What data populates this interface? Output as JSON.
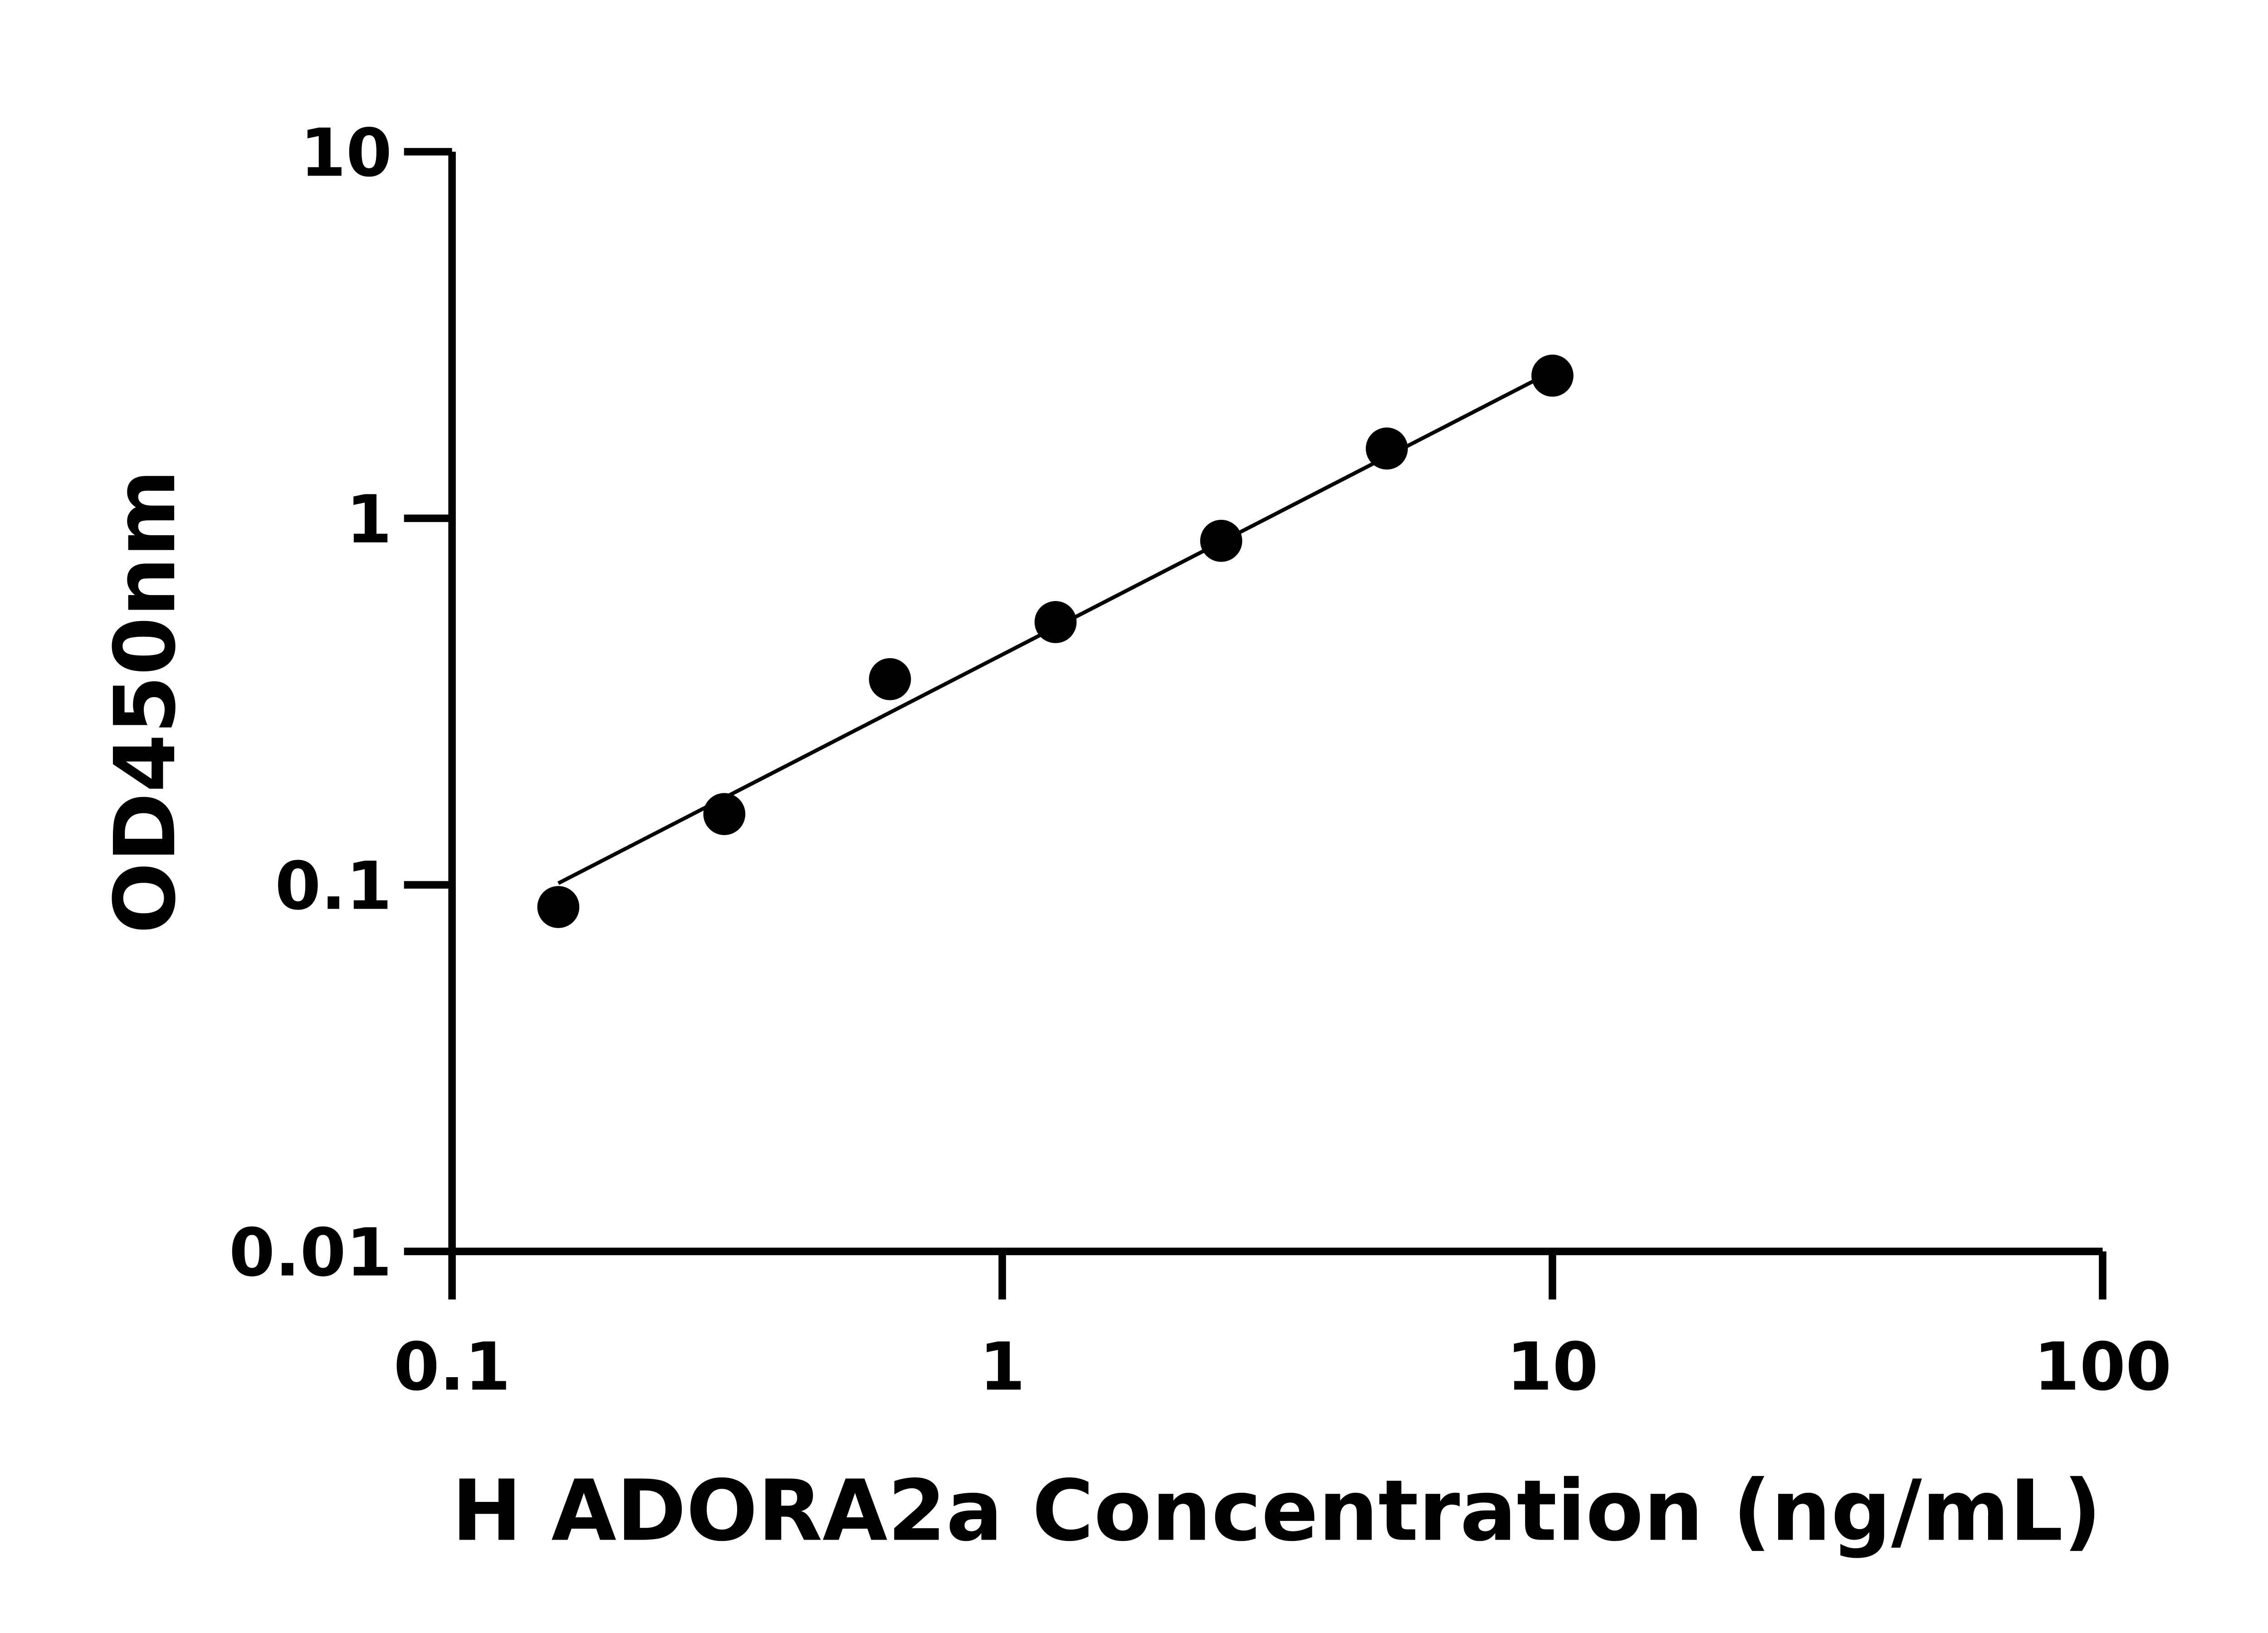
{
  "chart_data": {
    "type": "scatter",
    "title": "",
    "xlabel": "H ADORA2a Concentration (ng/mL)",
    "ylabel": "OD450nm",
    "x_scale": "log",
    "y_scale": "log",
    "xlim": [
      0.1,
      100
    ],
    "ylim": [
      0.01,
      10
    ],
    "x_ticks": [
      "0.1",
      "1",
      "10",
      "100"
    ],
    "y_ticks": [
      "0.01",
      "0.1",
      "1",
      "10"
    ],
    "grid": false,
    "color": "#000000",
    "points": {
      "x": [
        0.156,
        0.3125,
        0.625,
        1.25,
        2.5,
        5,
        10
      ],
      "y": [
        0.087,
        0.156,
        0.364,
        0.521,
        0.868,
        1.55,
        2.45
      ]
    },
    "fit_line": {
      "x": [
        0.156,
        9.3
      ],
      "y": [
        0.101,
        2.38
      ]
    }
  }
}
